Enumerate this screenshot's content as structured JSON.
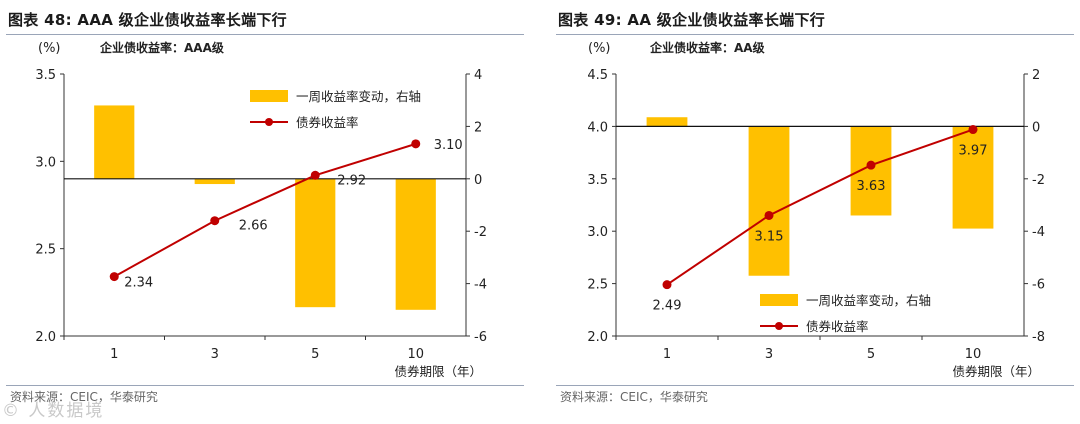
{
  "watermark": "© 人数据境",
  "chart_data": [
    {
      "type": "bar",
      "title": "图表 48: AAA 级企业债收益率长端下行",
      "subtitle": "企业债收益率：AAA级",
      "source": "资料来源：CEIC，华泰研究",
      "ylabel_left": "(%)",
      "xlabel": "债券期限（年）",
      "categories": [
        "1",
        "3",
        "5",
        "10"
      ],
      "left_axis": {
        "min": 2.0,
        "max": 3.5,
        "ticks": [
          "2.0",
          "2.5",
          "3.0",
          "3.5"
        ]
      },
      "right_axis": {
        "min": -6,
        "max": 4,
        "ticks": [
          "-6",
          "-4",
          "-2",
          "0",
          "2",
          "4"
        ]
      },
      "series": [
        {
          "name": "一周收益率变动，右轴",
          "type": "bar",
          "axis": "right",
          "color": "#FFC000",
          "values": [
            2.8,
            -0.2,
            -4.9,
            -5.0
          ]
        },
        {
          "name": "债券收益率",
          "type": "line",
          "axis": "left",
          "color": "#C00000",
          "values": [
            2.34,
            2.66,
            2.92,
            3.1
          ],
          "labels": [
            "2.34",
            "2.66",
            "2.92",
            "3.10"
          ]
        }
      ],
      "legend_position": "top-right"
    },
    {
      "type": "bar",
      "title": "图表 49: AA 级企业债收益率长端下行",
      "subtitle": "企业债收益率：AA级",
      "source": "资料来源：CEIC，华泰研究",
      "ylabel_left": "(%)",
      "xlabel": "债券期限（年）",
      "categories": [
        "1",
        "3",
        "5",
        "10"
      ],
      "left_axis": {
        "min": 2.0,
        "max": 4.5,
        "ticks": [
          "2.0",
          "2.5",
          "3.0",
          "3.5",
          "4.0",
          "4.5"
        ]
      },
      "right_axis": {
        "min": -8,
        "max": 2,
        "ticks": [
          "-8",
          "-6",
          "-4",
          "-2",
          "0",
          "2"
        ]
      },
      "series": [
        {
          "name": "一周收益率变动，右轴",
          "type": "bar",
          "axis": "right",
          "color": "#FFC000",
          "values": [
            0.35,
            -5.7,
            -3.4,
            -3.9
          ]
        },
        {
          "name": "债券收益率",
          "type": "line",
          "axis": "left",
          "color": "#C00000",
          "values": [
            2.49,
            3.15,
            3.63,
            3.97
          ],
          "labels": [
            "2.49",
            "3.15",
            "3.63",
            "3.97"
          ]
        }
      ],
      "legend_position": "bottom-right"
    }
  ]
}
